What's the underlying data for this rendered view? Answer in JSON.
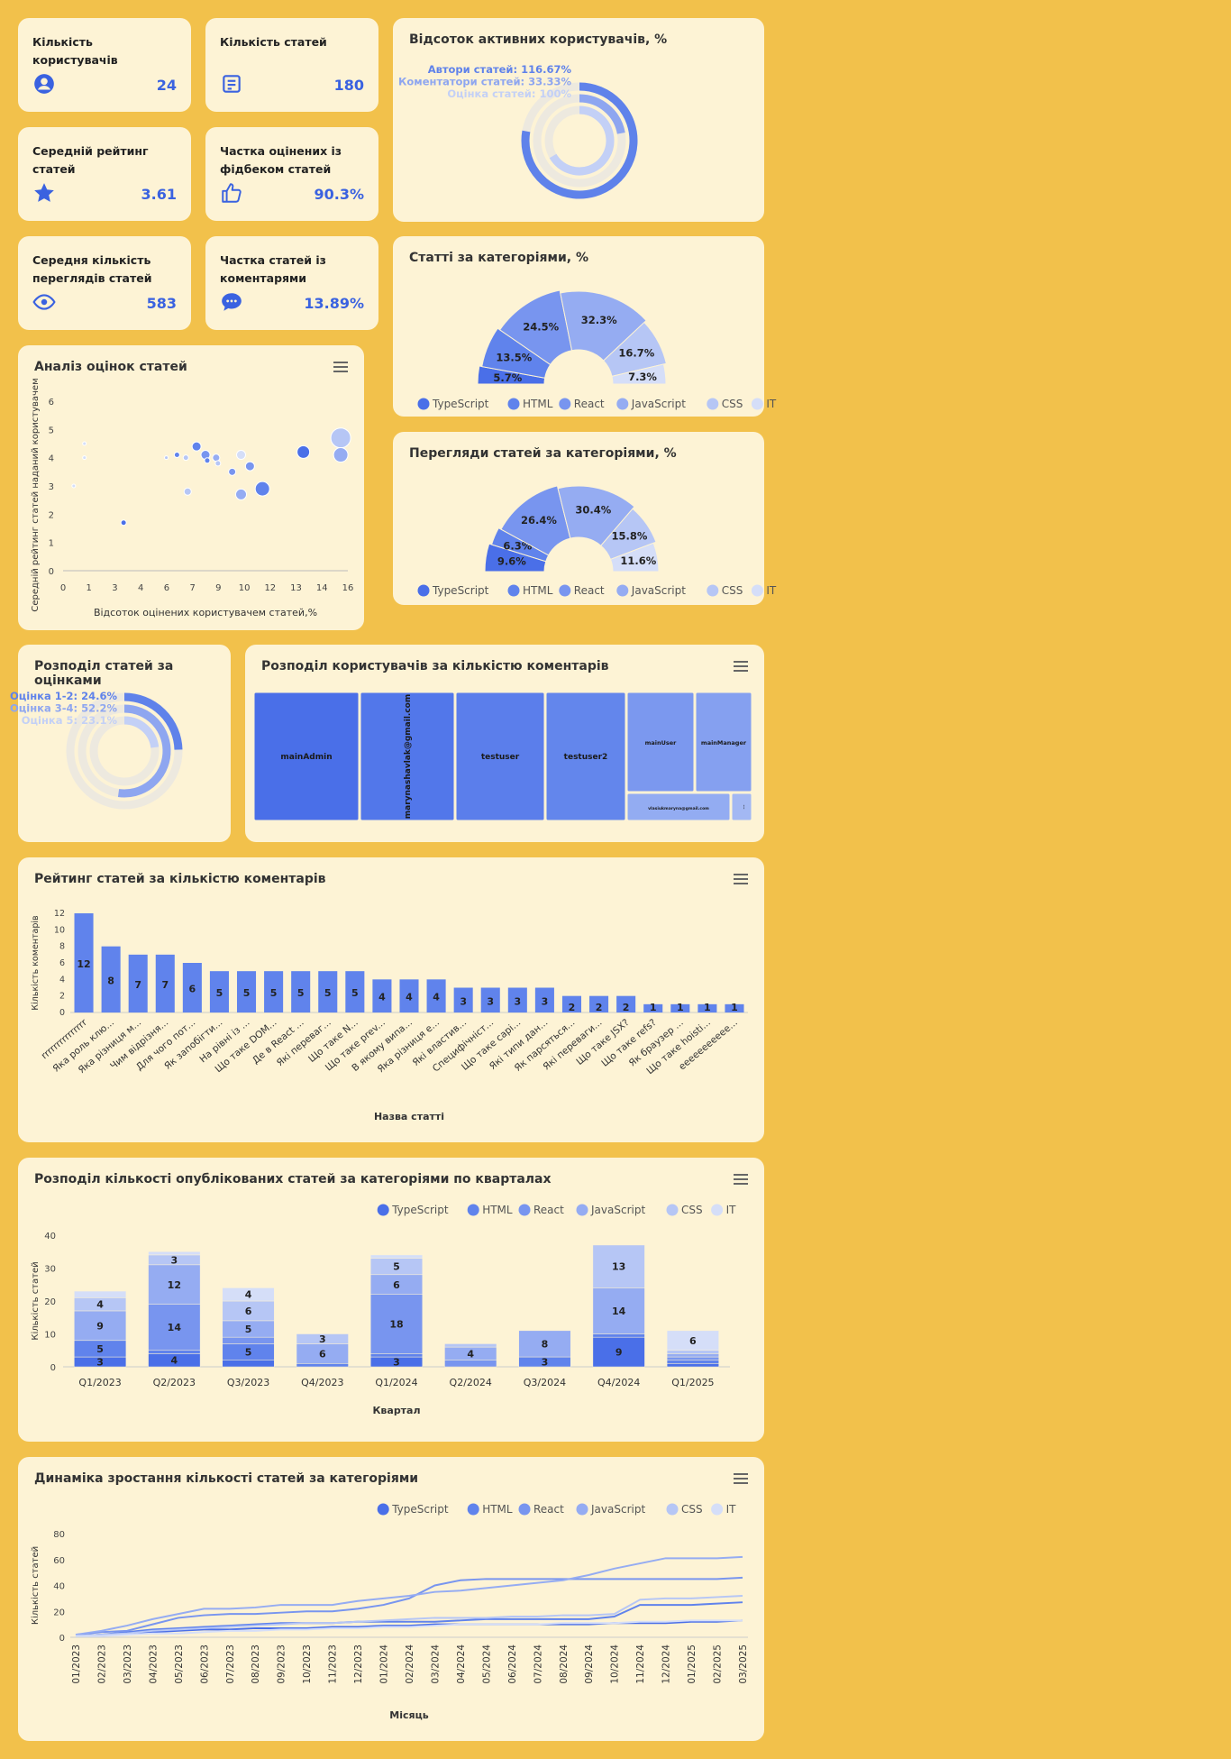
{
  "colors": {
    "TypeScript": "#4a6fe8",
    "HTML": "#6083ec",
    "React": "#7895ef",
    "JavaScript": "#95acf2",
    "CSS": "#b6c6f5",
    "IT": "#d5def8"
  },
  "kpis": [
    {
      "title": "Кількість користувачів",
      "value": "24",
      "icon": "user-circle-icon"
    },
    {
      "title": "Кількість статей",
      "value": "180",
      "icon": "article-icon"
    },
    {
      "title": "Середній рейтинг статей",
      "value": "3.61",
      "icon": "star-icon"
    },
    {
      "title": "Частка оцінених із фідбеком статей",
      "value": "90.3%",
      "icon": "thumbs-up-icon"
    },
    {
      "title": "Середня кількість переглядів статей",
      "value": "583",
      "icon": "eye-icon"
    },
    {
      "title": "Частка статей із коментарями",
      "value": "13.89%",
      "icon": "comment-icon"
    }
  ],
  "active_users": {
    "title": "Відсоток активних користувачів, %",
    "items": [
      {
        "label": "Автори статей: 116.67%",
        "value": 116.67,
        "color": "#5f82ea"
      },
      {
        "label": "Коментатори статей: 33.33%",
        "value": 33.33,
        "color": "#8ea6f0"
      },
      {
        "label": "Оцінка статей: 100%",
        "value": 100,
        "color": "#c3d0f6"
      }
    ]
  },
  "categories_pie": {
    "title": "Статті за категоріями, %",
    "legend": [
      "TypeScript",
      "HTML",
      "React",
      "JavaScript",
      "CSS",
      "IT"
    ]
  },
  "views_pie": {
    "title": "Перегляди статей за категоріями, %"
  },
  "rating_dist": {
    "title": "Розподіл статей за оцінками",
    "items": [
      {
        "label": "Оцінка 1-2: 24.6%",
        "value": 24.6,
        "color": "#5f82ea"
      },
      {
        "label": "Оцінка 3-4: 52.2%",
        "value": 52.2,
        "color": "#8ea6f0"
      },
      {
        "label": "Оцінка 5: 23.1%",
        "value": 23.1,
        "color": "#c3d0f6"
      }
    ]
  },
  "treemap": {
    "title": "Розподіл користувачів за кількістю коментарів",
    "cells": [
      {
        "label": "mainAdmin"
      },
      {
        "label": "marynashavlak@gmail.com"
      },
      {
        "label": "testuser"
      },
      {
        "label": "testuser2"
      },
      {
        "label": "mainUser"
      },
      {
        "label": "mainManager"
      },
      {
        "label": "vlasiukmaryna@gmail.com"
      },
      {
        "label": "..."
      }
    ]
  },
  "scatter": {
    "title": "Аналіз оцінок статей",
    "xlabel": "Відсоток оцінених користувачем статей,%",
    "ylabel": "Середній рейтинг статей наданий користувачем"
  },
  "comments_bar": {
    "title": "Рейтинг статей за кількістю коментарів",
    "xlabel": "Назва статті",
    "ylabel": "Кількість коментарів"
  },
  "quarterly": {
    "title": "Розподіл кількості опублікованих статей за категоріями по кварталах",
    "xlabel": "Квартал",
    "ylabel": "Кількість статей"
  },
  "growth": {
    "title": "Динаміка зростання кількості статей за категоріями",
    "xlabel": "Місяць",
    "ylabel": "Кількість статей"
  },
  "chart_data": [
    {
      "type": "pie",
      "title": "Відсоток активних користувачів, %",
      "categories": [
        "Автори статей",
        "Коментатори статей",
        "Оцінка статей"
      ],
      "values": [
        116.67,
        33.33,
        100
      ]
    },
    {
      "type": "pie",
      "title": "Статті за категоріями, %",
      "categories": [
        "TypeScript",
        "HTML",
        "React",
        "JavaScript",
        "CSS",
        "IT"
      ],
      "values": [
        5.7,
        13.5,
        24.5,
        32.3,
        16.7,
        7.3
      ]
    },
    {
      "type": "pie",
      "title": "Перегляди статей за категоріями, %",
      "categories": [
        "TypeScript",
        "HTML",
        "React",
        "JavaScript",
        "CSS",
        "IT"
      ],
      "values": [
        9.6,
        6.3,
        26.4,
        30.4,
        15.8,
        11.6
      ]
    },
    {
      "type": "scatter",
      "title": "Аналіз оцінок статей",
      "xlabel": "Відсоток оцінених користувачем статей,%",
      "ylabel": "Середній рейтинг статей наданий користувачем",
      "x_ticks": [
        0,
        1,
        3,
        4,
        6,
        7,
        9,
        10,
        12,
        13,
        14,
        16
      ],
      "y_ticks": [
        0,
        1,
        2,
        3,
        4,
        5,
        6
      ],
      "xlim": [
        0,
        16
      ],
      "ylim": [
        0,
        6
      ],
      "points": [
        {
          "x": 0.6,
          "y": 3.0,
          "r": 2,
          "shade": 5
        },
        {
          "x": 1.2,
          "y": 4.5,
          "r": 2,
          "shade": 5
        },
        {
          "x": 1.2,
          "y": 4.0,
          "r": 2,
          "shade": 5
        },
        {
          "x": 3.4,
          "y": 1.7,
          "r": 3,
          "shade": 0
        },
        {
          "x": 5.8,
          "y": 4.0,
          "r": 2,
          "shade": 4
        },
        {
          "x": 6.4,
          "y": 4.1,
          "r": 3,
          "shade": 1
        },
        {
          "x": 6.9,
          "y": 4.0,
          "r": 3,
          "shade": 4
        },
        {
          "x": 7.0,
          "y": 2.8,
          "r": 4,
          "shade": 4
        },
        {
          "x": 7.5,
          "y": 4.4,
          "r": 5,
          "shade": 1
        },
        {
          "x": 8.0,
          "y": 4.1,
          "r": 5,
          "shade": 2
        },
        {
          "x": 8.1,
          "y": 3.9,
          "r": 3,
          "shade": 1
        },
        {
          "x": 8.6,
          "y": 4.0,
          "r": 4,
          "shade": 3
        },
        {
          "x": 8.7,
          "y": 3.8,
          "r": 3,
          "shade": 4
        },
        {
          "x": 9.5,
          "y": 3.5,
          "r": 4,
          "shade": 2
        },
        {
          "x": 10.0,
          "y": 4.1,
          "r": 5,
          "shade": 5
        },
        {
          "x": 10.0,
          "y": 2.7,
          "r": 6,
          "shade": 3
        },
        {
          "x": 10.5,
          "y": 3.7,
          "r": 5,
          "shade": 2
        },
        {
          "x": 11.2,
          "y": 2.9,
          "r": 8,
          "shade": 1
        },
        {
          "x": 13.5,
          "y": 4.2,
          "r": 7,
          "shade": 0
        },
        {
          "x": 15.6,
          "y": 4.7,
          "r": 11,
          "shade": 4
        },
        {
          "x": 15.6,
          "y": 4.1,
          "r": 8,
          "shade": 3
        }
      ]
    },
    {
      "type": "bar",
      "title": "Рейтинг статей за кількістю коментарів",
      "xlabel": "Назва статті",
      "ylabel": "Кількість коментарів",
      "ylim": [
        0,
        12
      ],
      "y_ticks": [
        0,
        2,
        4,
        6,
        8,
        10,
        12
      ],
      "categories": [
        "rrrrrrrrrrrrrrr",
        "Яка роль клю...",
        "Яка різниця м...",
        "Чим відрізня...",
        "Для чого пот...",
        "Як запобігти...",
        "На рівні із ...",
        "Що таке DOM...",
        "Де в React ...",
        "Які переваг...",
        "Що таке N...",
        "Що таке prev...",
        "В якому випа...",
        "Яка різниця е...",
        "Які властив...",
        "Специфічніст...",
        "Що таке сарі...",
        "Які типи дан...",
        "Як парсяться...",
        "Які переваги...",
        "Що таке JSX?",
        "Що таке refs?",
        "Як браузер ...",
        "Що таке hoisti...",
        "eeeeeeeeeee..."
      ],
      "values": [
        12,
        8,
        7,
        7,
        6,
        5,
        5,
        5,
        5,
        5,
        5,
        4,
        4,
        4,
        3,
        3,
        3,
        3,
        2,
        2,
        2,
        1,
        1,
        1,
        1
      ]
    },
    {
      "type": "bar",
      "stacked": true,
      "title": "Розподіл кількості опублікованих статей за категоріями по кварталах",
      "xlabel": "Квартал",
      "ylabel": "Кількість статей",
      "ylim": [
        0,
        40
      ],
      "y_ticks": [
        0,
        10,
        20,
        30,
        40
      ],
      "legend": "top-right",
      "categories": [
        "Q1/2023",
        "Q2/2023",
        "Q3/2023",
        "Q4/2023",
        "Q1/2024",
        "Q2/2024",
        "Q3/2024",
        "Q4/2024",
        "Q1/2025"
      ],
      "series": [
        {
          "name": "TypeScript",
          "values": [
            3,
            4,
            2,
            0,
            3,
            0,
            0,
            9,
            1
          ],
          "labels": [
            "3",
            "4",
            "",
            "",
            "3",
            "",
            "",
            "9",
            ""
          ]
        },
        {
          "name": "HTML",
          "values": [
            5,
            1,
            5,
            1,
            1,
            0,
            3,
            1,
            1
          ],
          "labels": [
            "5",
            "",
            "5",
            "",
            "",
            "",
            "3",
            "",
            ""
          ]
        },
        {
          "name": "React",
          "values": [
            0,
            14,
            2,
            0,
            18,
            2,
            0,
            0,
            1
          ],
          "labels": [
            "",
            "14",
            "",
            "",
            "18",
            "",
            "",
            "",
            ""
          ]
        },
        {
          "name": "JavaScript",
          "values": [
            9,
            12,
            5,
            6,
            6,
            4,
            8,
            14,
            1
          ],
          "labels": [
            "9",
            "12",
            "5",
            "6",
            "6",
            "4",
            "8",
            "14",
            ""
          ]
        },
        {
          "name": "CSS",
          "values": [
            4,
            3,
            6,
            3,
            5,
            1,
            0,
            13,
            1
          ],
          "labels": [
            "4",
            "3",
            "6",
            "3",
            "5",
            "",
            "",
            "13",
            ""
          ]
        },
        {
          "name": "IT",
          "values": [
            2,
            1,
            4,
            0,
            1,
            0,
            0,
            0,
            6
          ],
          "labels": [
            "",
            "",
            "4",
            "",
            "",
            "",
            "",
            "",
            "6"
          ]
        }
      ]
    },
    {
      "type": "line",
      "title": "Динаміка зростання кількості статей за категоріями",
      "xlabel": "Місяць",
      "ylabel": "Кількість статей",
      "ylim": [
        0,
        80
      ],
      "y_ticks": [
        0,
        20,
        40,
        60,
        80
      ],
      "legend": "top-right",
      "x": [
        "01/2023",
        "02/2023",
        "03/2023",
        "04/2023",
        "05/2023",
        "06/2023",
        "07/2023",
        "08/2023",
        "09/2023",
        "10/2023",
        "11/2023",
        "12/2023",
        "01/2024",
        "02/2024",
        "03/2024",
        "04/2024",
        "05/2024",
        "06/2024",
        "07/2024",
        "08/2024",
        "09/2024",
        "10/2024",
        "11/2024",
        "12/2024",
        "01/2025",
        "02/2025",
        "03/2025"
      ],
      "series": [
        {
          "name": "TypeScript",
          "values": [
            1,
            2,
            3,
            4,
            5,
            6,
            6,
            7,
            7,
            7,
            8,
            8,
            9,
            9,
            10,
            10,
            10,
            10,
            10,
            10,
            10,
            11,
            11,
            11,
            12,
            12,
            13
          ]
        },
        {
          "name": "HTML",
          "values": [
            1,
            2,
            4,
            6,
            7,
            8,
            9,
            10,
            11,
            11,
            11,
            12,
            12,
            12,
            12,
            13,
            14,
            14,
            14,
            14,
            14,
            16,
            25,
            25,
            25,
            26,
            27
          ]
        },
        {
          "name": "React",
          "values": [
            2,
            4,
            5,
            10,
            15,
            17,
            18,
            18,
            19,
            20,
            20,
            22,
            25,
            30,
            40,
            44,
            45,
            45,
            45,
            45,
            45,
            45,
            45,
            45,
            45,
            45,
            46
          ]
        },
        {
          "name": "JavaScript",
          "values": [
            2,
            5,
            9,
            14,
            18,
            22,
            22,
            23,
            25,
            25,
            25,
            28,
            30,
            32,
            35,
            36,
            38,
            40,
            42,
            44,
            48,
            53,
            57,
            61,
            61,
            61,
            62
          ]
        },
        {
          "name": "CSS",
          "values": [
            1,
            2,
            3,
            5,
            6,
            7,
            8,
            9,
            10,
            11,
            11,
            12,
            13,
            14,
            15,
            15,
            15,
            16,
            16,
            17,
            17,
            18,
            29,
            30,
            30,
            31,
            32
          ]
        },
        {
          "name": "IT",
          "values": [
            1,
            1,
            2,
            3,
            3,
            4,
            5,
            5,
            6,
            6,
            7,
            7,
            8,
            8,
            9,
            10,
            10,
            10,
            10,
            11,
            11,
            11,
            12,
            12,
            13,
            13,
            13
          ]
        }
      ]
    }
  ]
}
